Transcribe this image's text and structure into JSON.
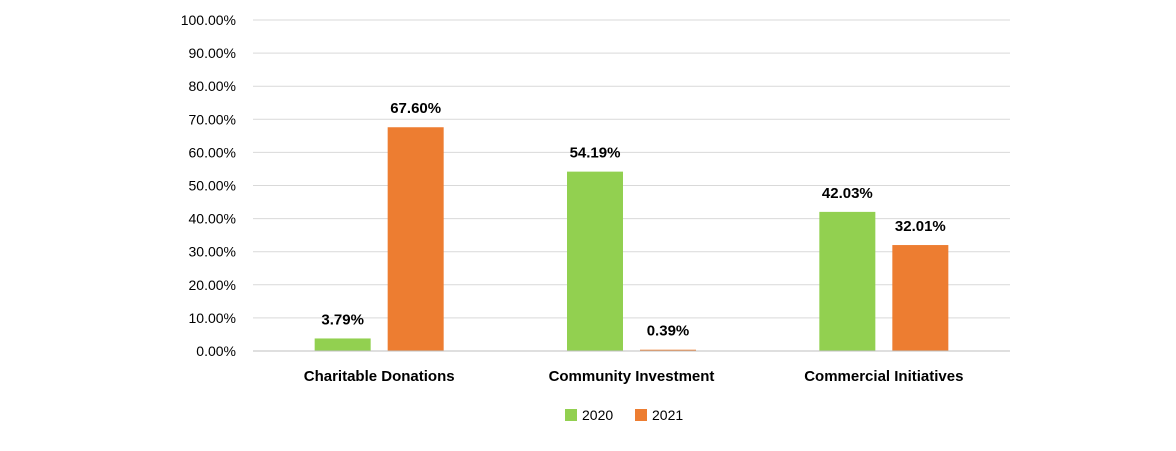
{
  "chart_data": {
    "type": "bar",
    "categories": [
      "Charitable Donations",
      "Community Investment",
      "Commercial Initiatives"
    ],
    "series": [
      {
        "name": "2020",
        "color": "#92d050",
        "values": [
          3.79,
          54.19,
          42.03
        ],
        "labels": [
          "3.79%",
          "54.19%",
          "42.03%"
        ]
      },
      {
        "name": "2021",
        "color": "#ed7d31",
        "values": [
          67.6,
          0.39,
          32.01
        ],
        "labels": [
          "67.60%",
          "0.39%",
          "32.01%"
        ]
      }
    ],
    "y_ticks": [
      "0.00%",
      "10.00%",
      "20.00%",
      "30.00%",
      "40.00%",
      "50.00%",
      "60.00%",
      "70.00%",
      "80.00%",
      "90.00%",
      "100.00%"
    ],
    "ylim": [
      0,
      100
    ],
    "grid": true,
    "legend_position": "bottom"
  }
}
